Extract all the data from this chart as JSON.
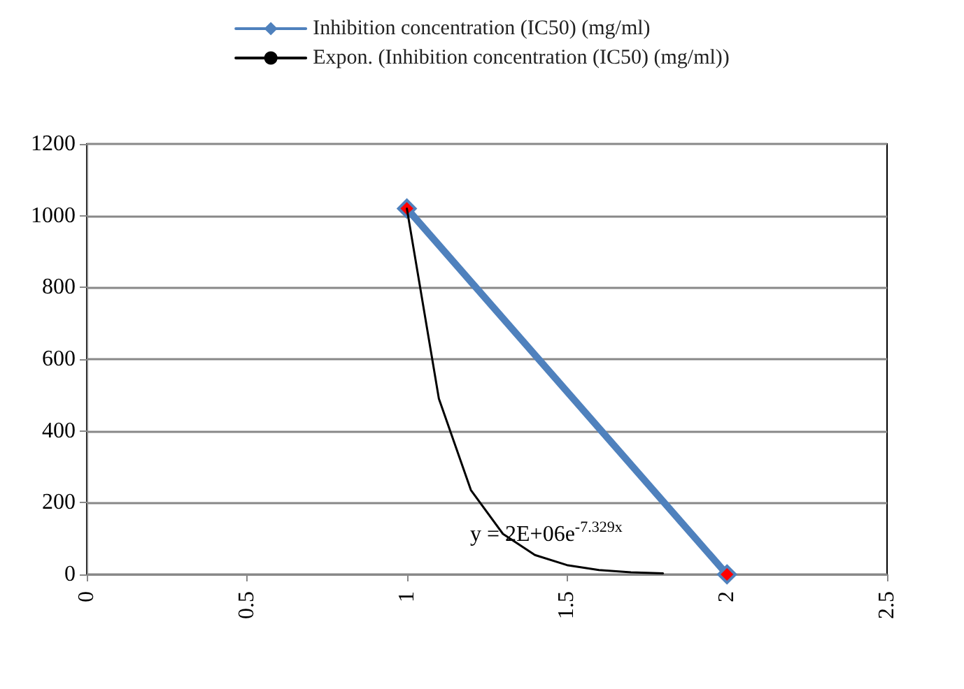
{
  "chart_data": {
    "type": "line",
    "series": [
      {
        "name": "Inhibition concentration (IC50) (mg/ml)",
        "color": "#4f81bd",
        "colors": [
          "#ff0000",
          "#ff0000"
        ],
        "marker": "diamond",
        "x": [
          1,
          2
        ],
        "values": [
          1020,
          0
        ]
      },
      {
        "name": "Expon. (Inhibition concentration (IC50) (mg/ml))",
        "color": "#000000",
        "marker": "none",
        "x": [
          1,
          1.1,
          1.2,
          1.3,
          1.4,
          1.5,
          1.6,
          1.7,
          1.8
        ],
        "values": [
          1020,
          490,
          235,
          113,
          54,
          26,
          12,
          6,
          3
        ]
      }
    ],
    "xlim": [
      0,
      2.5
    ],
    "xticks": [
      0,
      0.5,
      1,
      1.5,
      2,
      2.5
    ],
    "ylim": [
      0,
      1200
    ],
    "yticks": [
      0,
      200,
      400,
      600,
      800,
      1000,
      1200
    ],
    "grid": "y",
    "legend": "top",
    "annotations": [
      "y = 2E+06e$^{-7.329x}$"
    ]
  }
}
